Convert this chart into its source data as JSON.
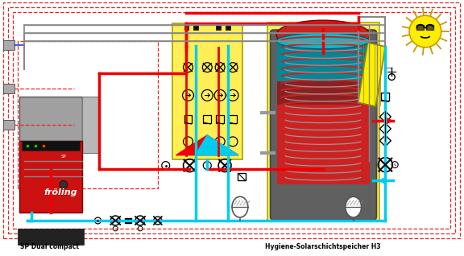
{
  "bg_color": "#ffffff",
  "label_boiler": "SP Dual compact",
  "label_tank": "Hygiene-Solarschichtspeicher H3",
  "boiler_red": "#cc1111",
  "boiler_gray": "#a0a0a0",
  "boiler_darkgray": "#707070",
  "panel_bg": "#ffee55",
  "panel_border": "#aaaa00",
  "solar_yellow": "#ffee00",
  "sun_yellow": "#ffee00",
  "sun_border": "#cc9900",
  "pipe_red": "#ee0000",
  "pipe_cyan": "#00ccee",
  "pipe_gray": "#888888",
  "pipe_darkgray": "#555555",
  "dashed_red": "#ee2222",
  "dashed_blue": "#2244cc",
  "coil_red": "#cc2222",
  "coil_gray": "#999999",
  "tank_red": "#cc2222",
  "tank_darkred": "#8B2020",
  "tank_teal": "#008899",
  "tank_teal2": "#00bbcc",
  "black": "#000000",
  "white": "#ffffff"
}
